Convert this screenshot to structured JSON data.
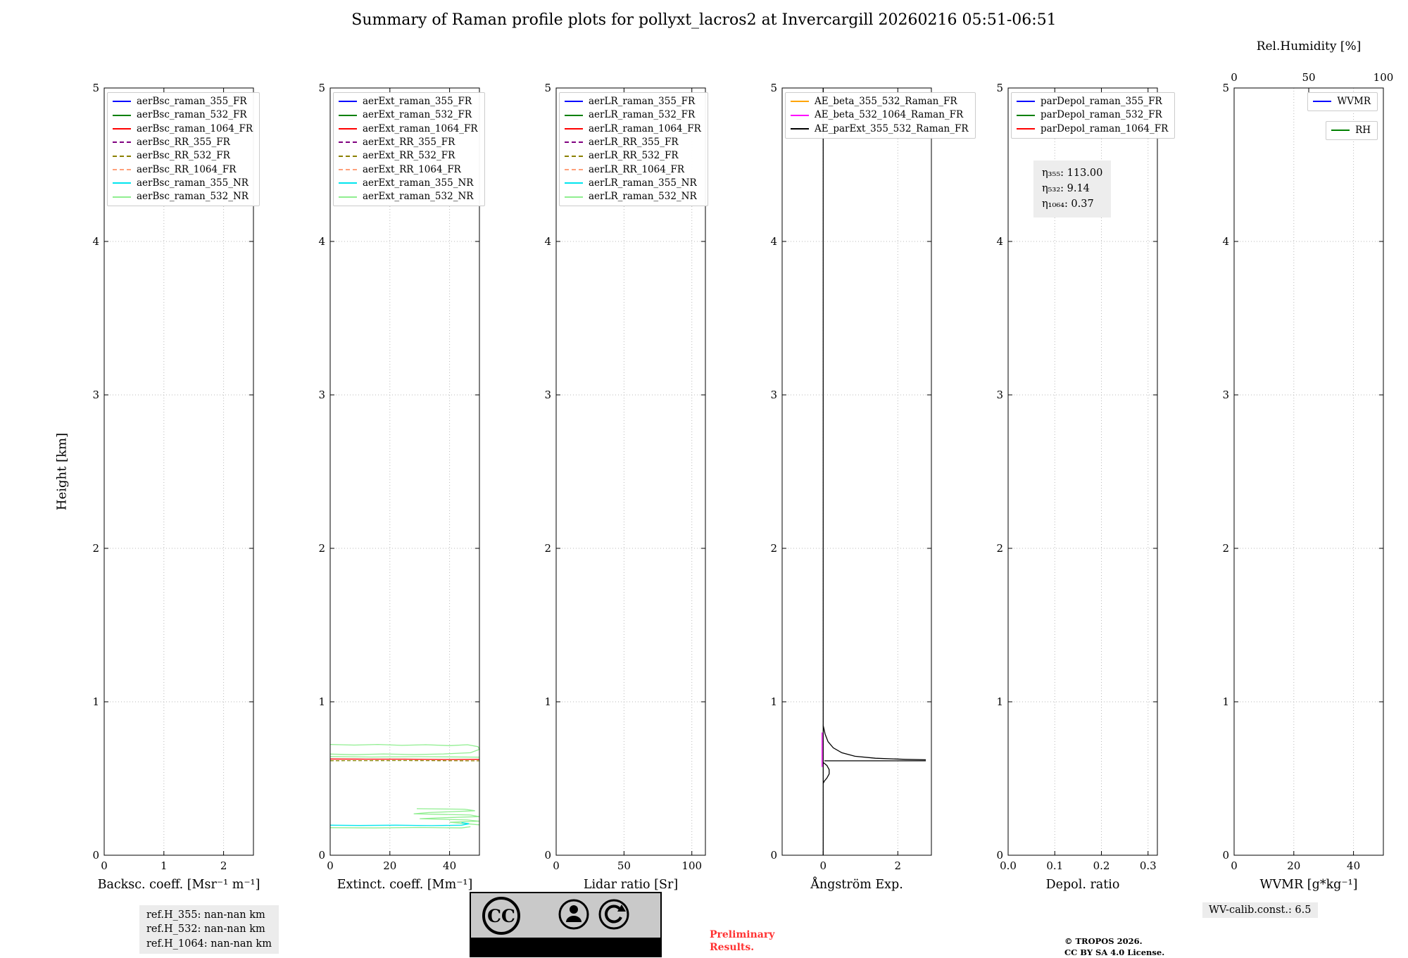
{
  "title": "Summary of Raman profile plots for pollyxt_lacros2 at Invercargill 20260216 05:51-06:51",
  "ylabel": "Height [km]",
  "annotations": {
    "eta": [
      "η₃₅₅: 113.00",
      "η₅₃₂: 9.14",
      "η₁₀₆₄: 0.37"
    ],
    "ref_heights": [
      "ref.H_355: nan-nan km",
      "ref.H_532: nan-nan km",
      "ref.H_1064: nan-nan km"
    ],
    "preliminary": [
      "Preliminary",
      "Results."
    ],
    "copyright": [
      "© TROPOS 2026.",
      "CC BY SA 4.0 License."
    ],
    "wv_calib": "WV-calib.const.: 6.5",
    "cc_badge": {
      "cc": "CC",
      "by": "BY",
      "sa": "SA"
    }
  },
  "chart_data": [
    {
      "name": "backscatter",
      "type": "line",
      "xlabel": "Backsc. coeff. [Msr⁻¹ m⁻¹]",
      "xlim": [
        0,
        2.5
      ],
      "xticks": [
        0,
        1,
        2
      ],
      "xtick_labels": [
        "0",
        "1",
        "2"
      ],
      "ylim": [
        0,
        5
      ],
      "yticks": [
        0,
        1,
        2,
        3,
        4,
        5
      ],
      "grid": true,
      "legend": [
        {
          "label": "aerBsc_raman_355_FR",
          "color": "#0000ff",
          "dash": false
        },
        {
          "label": "aerBsc_raman_532_FR",
          "color": "#008000",
          "dash": false
        },
        {
          "label": "aerBsc_raman_1064_FR",
          "color": "#ff0000",
          "dash": false
        },
        {
          "label": "aerBsc_RR_355_FR",
          "color": "#800080",
          "dash": true
        },
        {
          "label": "aerBsc_RR_532_FR",
          "color": "#8b8000",
          "dash": true
        },
        {
          "label": "aerBsc_RR_1064_FR",
          "color": "#ffa07a",
          "dash": true
        },
        {
          "label": "aerBsc_raman_355_NR",
          "color": "#00e5ee",
          "dash": false
        },
        {
          "label": "aerBsc_raman_532_NR",
          "color": "#90ee90",
          "dash": false
        }
      ],
      "series": []
    },
    {
      "name": "extinction",
      "type": "line",
      "xlabel": "Extinct. coeff. [Mm⁻¹]",
      "xlim": [
        0,
        50
      ],
      "xticks": [
        0,
        20,
        40
      ],
      "xtick_labels": [
        "0",
        "20",
        "40"
      ],
      "ylim": [
        0,
        5
      ],
      "yticks": [
        0,
        1,
        2,
        3,
        4,
        5
      ],
      "grid": true,
      "legend": [
        {
          "label": "aerExt_raman_355_FR",
          "color": "#0000ff",
          "dash": false
        },
        {
          "label": "aerExt_raman_532_FR",
          "color": "#008000",
          "dash": false
        },
        {
          "label": "aerExt_raman_1064_FR",
          "color": "#ff0000",
          "dash": false
        },
        {
          "label": "aerExt_RR_355_FR",
          "color": "#800080",
          "dash": true
        },
        {
          "label": "aerExt_RR_532_FR",
          "color": "#8b8000",
          "dash": true
        },
        {
          "label": "aerExt_RR_1064_FR",
          "color": "#ffa07a",
          "dash": true
        },
        {
          "label": "aerExt_raman_355_NR",
          "color": "#00e5ee",
          "dash": false
        },
        {
          "label": "aerExt_raman_532_NR",
          "color": "#90ee90",
          "dash": false
        }
      ],
      "series": [
        {
          "name": "aerExt_raman_532_NR",
          "color": "#90ee90",
          "dash": false,
          "segments": [
            [
              [
                0,
                0.722
              ],
              [
                8,
                0.718
              ],
              [
                16,
                0.722
              ],
              [
                24,
                0.716
              ],
              [
                32,
                0.72
              ],
              [
                40,
                0.714
              ],
              [
                46,
                0.72
              ],
              [
                49.5,
                0.708
              ],
              [
                50,
                0.69
              ],
              [
                47,
                0.668
              ],
              [
                38,
                0.66
              ],
              [
                28,
                0.656
              ],
              [
                18,
                0.66
              ],
              [
                8,
                0.655
              ],
              [
                0,
                0.659
              ]
            ],
            [
              [
                0,
                0.643
              ],
              [
                14,
                0.64
              ],
              [
                30,
                0.642
              ],
              [
                50,
                0.639
              ]
            ],
            [
              [
                29,
                0.303
              ],
              [
                45,
                0.3
              ],
              [
                48.5,
                0.29
              ],
              [
                33,
                0.278
              ],
              [
                28,
                0.27
              ],
              [
                47,
                0.262
              ],
              [
                50,
                0.252
              ],
              [
                36,
                0.243
              ],
              [
                30,
                0.238
              ],
              [
                46,
                0.23
              ],
              [
                50,
                0.222
              ],
              [
                40,
                0.215
              ],
              [
                46,
                0.205
              ],
              [
                50,
                0.198
              ]
            ],
            [
              [
                0,
                0.18
              ],
              [
                15,
                0.178
              ],
              [
                30,
                0.181
              ],
              [
                44,
                0.178
              ],
              [
                47,
                0.186
              ]
            ]
          ]
        },
        {
          "name": "aerExt_raman_355_NR",
          "color": "#00e5ee",
          "dash": false,
          "segments": [
            [
              [
                0,
                0.196
              ],
              [
                10,
                0.194
              ],
              [
                22,
                0.196
              ],
              [
                34,
                0.193
              ],
              [
                44,
                0.196
              ],
              [
                46.5,
                0.205
              ],
              [
                44,
                0.213
              ]
            ]
          ]
        },
        {
          "name": "aerExt_RR_532_FR",
          "color": "#8b8000",
          "dash": true,
          "segments": [
            [
              [
                0,
                0.616
              ],
              [
                25,
                0.617
              ],
              [
                50,
                0.615
              ]
            ]
          ]
        },
        {
          "name": "aerExt_raman_1064_FR",
          "color": "#ff0000",
          "dash": false,
          "segments": [
            [
              [
                0,
                0.627
              ],
              [
                12,
                0.626
              ],
              [
                25,
                0.626
              ],
              [
                38,
                0.624
              ],
              [
                50,
                0.625
              ]
            ]
          ]
        }
      ]
    },
    {
      "name": "lidar-ratio",
      "type": "line",
      "xlabel": "Lidar ratio [Sr]",
      "xlim": [
        0,
        110
      ],
      "xticks": [
        0,
        50,
        100
      ],
      "xtick_labels": [
        "0",
        "50",
        "100"
      ],
      "ylim": [
        0,
        5
      ],
      "yticks": [
        0,
        1,
        2,
        3,
        4,
        5
      ],
      "grid": true,
      "legend": [
        {
          "label": "aerLR_raman_355_FR",
          "color": "#0000ff",
          "dash": false
        },
        {
          "label": "aerLR_raman_532_FR",
          "color": "#008000",
          "dash": false
        },
        {
          "label": "aerLR_raman_1064_FR",
          "color": "#ff0000",
          "dash": false
        },
        {
          "label": "aerLR_RR_355_FR",
          "color": "#800080",
          "dash": true
        },
        {
          "label": "aerLR_RR_532_FR",
          "color": "#8b8000",
          "dash": true
        },
        {
          "label": "aerLR_RR_1064_FR",
          "color": "#ffa07a",
          "dash": true
        },
        {
          "label": "aerLR_raman_355_NR",
          "color": "#00e5ee",
          "dash": false
        },
        {
          "label": "aerLR_raman_532_NR",
          "color": "#90ee90",
          "dash": false
        }
      ],
      "series": []
    },
    {
      "name": "angstrom",
      "type": "line",
      "xlabel": "Ångström Exp.",
      "xlim": [
        -1.1,
        2.9
      ],
      "xticks": [
        0,
        2
      ],
      "xtick_labels": [
        "0",
        "2"
      ],
      "ylim": [
        0,
        5
      ],
      "yticks": [
        0,
        1,
        2,
        3,
        4,
        5
      ],
      "grid": true,
      "legend": [
        {
          "label": "AE_beta_355_532_Raman_FR",
          "color": "#ffa500",
          "dash": false
        },
        {
          "label": "AE_beta_532_1064_Raman_FR",
          "color": "#ff00ff",
          "dash": false
        },
        {
          "label": "AE_parExt_355_532_Raman_FR",
          "color": "#000000",
          "dash": false
        }
      ],
      "series": [
        {
          "name": "AE_beta_532_1064_Raman_FR",
          "color": "#ff00ff",
          "dash": false,
          "segments": [
            [
              [
                -0.03,
                0.8
              ],
              [
                -0.03,
                0.575
              ]
            ]
          ]
        },
        {
          "name": "AE_parExt_355_532_Raman_FR",
          "color": "#000000",
          "dash": false,
          "segments": [
            [
              [
                0,
                5
              ],
              [
                0,
                0
              ]
            ],
            [
              [
                0,
                0.845
              ],
              [
                0.05,
                0.79
              ],
              [
                0.13,
                0.74
              ],
              [
                0.27,
                0.7
              ],
              [
                0.5,
                0.668
              ],
              [
                0.85,
                0.645
              ],
              [
                1.4,
                0.632
              ],
              [
                2.2,
                0.625
              ],
              [
                2.75,
                0.622
              ]
            ],
            [
              [
                0.03,
                0.615
              ],
              [
                2.75,
                0.615
              ]
            ],
            [
              [
                0,
                0.605
              ],
              [
                0.1,
                0.585
              ],
              [
                0.16,
                0.558
              ],
              [
                0.16,
                0.53
              ],
              [
                0.1,
                0.503
              ],
              [
                0.03,
                0.483
              ],
              [
                0,
                0.468
              ]
            ]
          ]
        }
      ]
    },
    {
      "name": "depol",
      "type": "line",
      "xlabel": "Depol. ratio",
      "xlim": [
        0,
        0.32
      ],
      "xticks": [
        0,
        0.1,
        0.2,
        0.3
      ],
      "xtick_labels": [
        "0.0",
        "0.1",
        "0.2",
        "0.3"
      ],
      "ylim": [
        0,
        5
      ],
      "yticks": [
        0,
        1,
        2,
        3,
        4,
        5
      ],
      "grid": true,
      "legend": [
        {
          "label": "parDepol_raman_355_FR",
          "color": "#0000ff",
          "dash": false
        },
        {
          "label": "parDepol_raman_532_FR",
          "color": "#008000",
          "dash": false
        },
        {
          "label": "parDepol_raman_1064_FR",
          "color": "#ff0000",
          "dash": false
        }
      ],
      "series": []
    },
    {
      "name": "wvmr",
      "type": "line",
      "xlabel": "WVMR [g*kg⁻¹]",
      "xlim": [
        0,
        50
      ],
      "xticks": [
        0,
        20,
        40
      ],
      "xtick_labels": [
        "0",
        "20",
        "40"
      ],
      "ylim": [
        0,
        5
      ],
      "yticks": [
        0,
        1,
        2,
        3,
        4,
        5
      ],
      "grid": true,
      "top_axis": {
        "label": "Rel.Humidity [%]",
        "lim": [
          0,
          100
        ],
        "ticks": [
          0,
          50,
          100
        ],
        "tick_labels": [
          "0",
          "50",
          "100"
        ]
      },
      "legend": [
        {
          "label": "WVMR",
          "color": "#0000ff",
          "dash": false
        }
      ],
      "legend2": [
        {
          "label": "RH",
          "color": "#008000",
          "dash": false
        }
      ],
      "series": []
    }
  ]
}
